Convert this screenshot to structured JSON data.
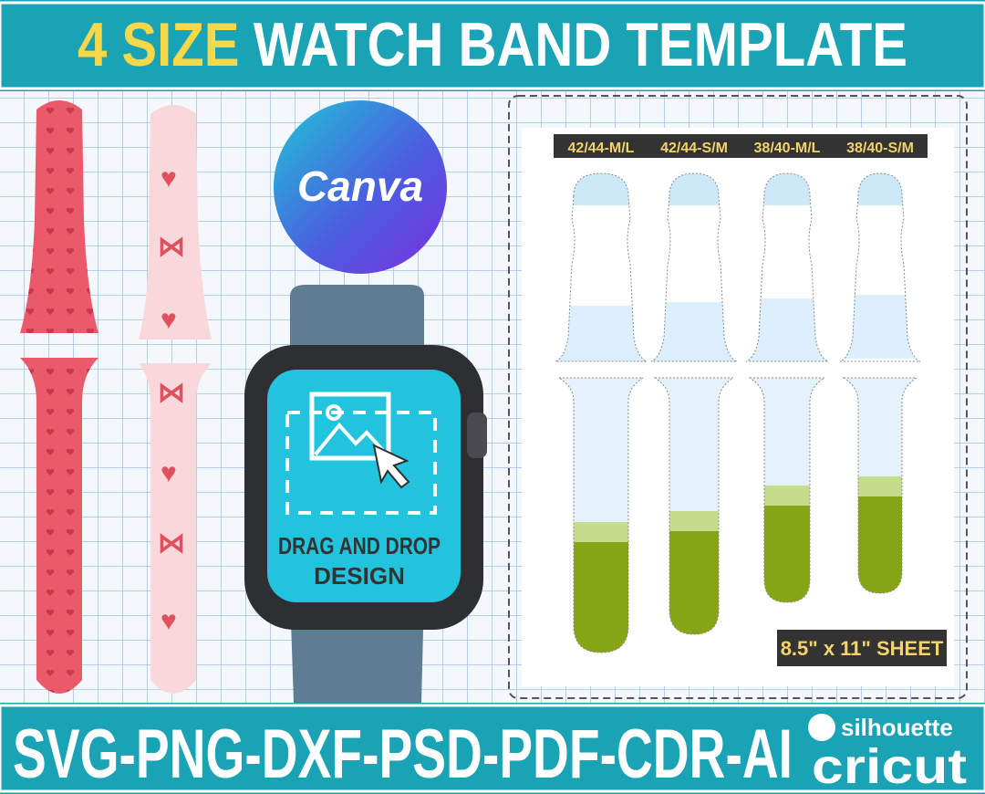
{
  "header": {
    "title_highlight": "4 SIZE",
    "title": "WATCH BAND TEMPLATE"
  },
  "logo": "Canva",
  "screen_text": [
    "DRAG AND DROP",
    "DESIGN"
  ],
  "sheet": {
    "sizes": [
      "42/44-M/L",
      "42/44-S/M",
      "38/40-M/L",
      "38/40-S/M"
    ],
    "paper": "8.5\" x 11\" SHEET"
  },
  "footer": {
    "formats": "SVG-PNG-DXF-PSD-PDF-CDR-AI",
    "brands": [
      "silhouette",
      "cricut"
    ]
  }
}
